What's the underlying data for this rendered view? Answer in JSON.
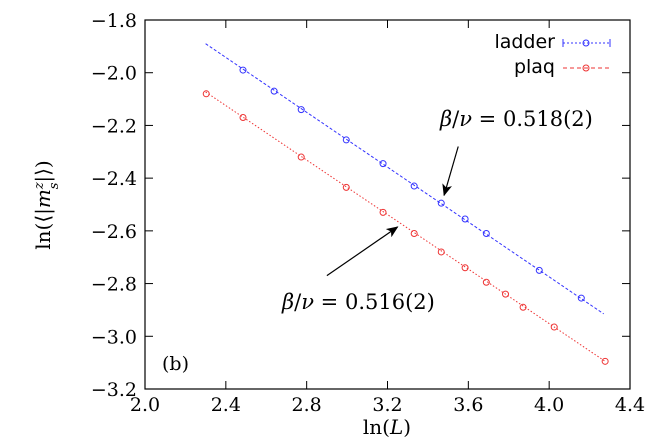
{
  "chart_data": {
    "type": "scatter",
    "xlabel_main": "ln(",
    "xlabel_var": "L",
    "xlabel_close": ")",
    "ylabel": "ln(⟨|m_s^z|⟩)",
    "xlim": [
      2.0,
      4.4
    ],
    "ylim": [
      -3.2,
      -1.8
    ],
    "xticks": [
      "2.0",
      "2.4",
      "2.8",
      "3.2",
      "3.6",
      "4.0",
      "4.4"
    ],
    "yticks": [
      "−1.8",
      "−2.0",
      "−2.2",
      "−2.4",
      "−2.6",
      "−2.8",
      "−3.0",
      "−3.2"
    ],
    "grid": false,
    "legend_position": "top-right",
    "panel_label": "(b)",
    "series": [
      {
        "name": "ladder",
        "color": "#3333ff",
        "marker": "circle",
        "x": [
          2.485,
          2.639,
          2.773,
          2.996,
          3.178,
          3.332,
          3.466,
          3.584,
          3.689,
          3.951,
          4.159
        ],
        "y": [
          -1.99,
          -2.07,
          -2.14,
          -2.255,
          -2.345,
          -2.43,
          -2.495,
          -2.555,
          -2.61,
          -2.75,
          -2.855
        ],
        "fit": {
          "x": [
            2.3,
            4.27
          ],
          "y": [
            -1.89,
            -2.915
          ],
          "style": "dashed"
        }
      },
      {
        "name": "plaq",
        "color": "#ee3333",
        "marker": "circle",
        "x": [
          2.303,
          2.485,
          2.773,
          2.996,
          3.178,
          3.332,
          3.466,
          3.584,
          3.689,
          3.784,
          3.871,
          4.025,
          4.277
        ],
        "y": [
          -2.08,
          -2.17,
          -2.32,
          -2.435,
          -2.53,
          -2.61,
          -2.68,
          -2.74,
          -2.795,
          -2.84,
          -2.89,
          -2.965,
          -3.095
        ],
        "fit": {
          "x": [
            2.3,
            4.277
          ],
          "y": [
            -2.073,
            -3.095
          ],
          "style": "dotted"
        }
      }
    ],
    "annotations": [
      {
        "prefix": "β/ν = ",
        "value": "0.518(2)",
        "text_at": [
          3.57,
          -2.15
        ],
        "arrow_from": [
          3.55,
          -2.28
        ],
        "arrow_to": [
          3.48,
          -2.465
        ]
      },
      {
        "prefix": "β/ν = ",
        "value": "0.516(2)",
        "text_at": [
          3.02,
          -2.955
        ],
        "arrow_from": [
          2.9,
          -2.77
        ],
        "arrow_to": [
          3.25,
          -2.585
        ]
      }
    ]
  }
}
